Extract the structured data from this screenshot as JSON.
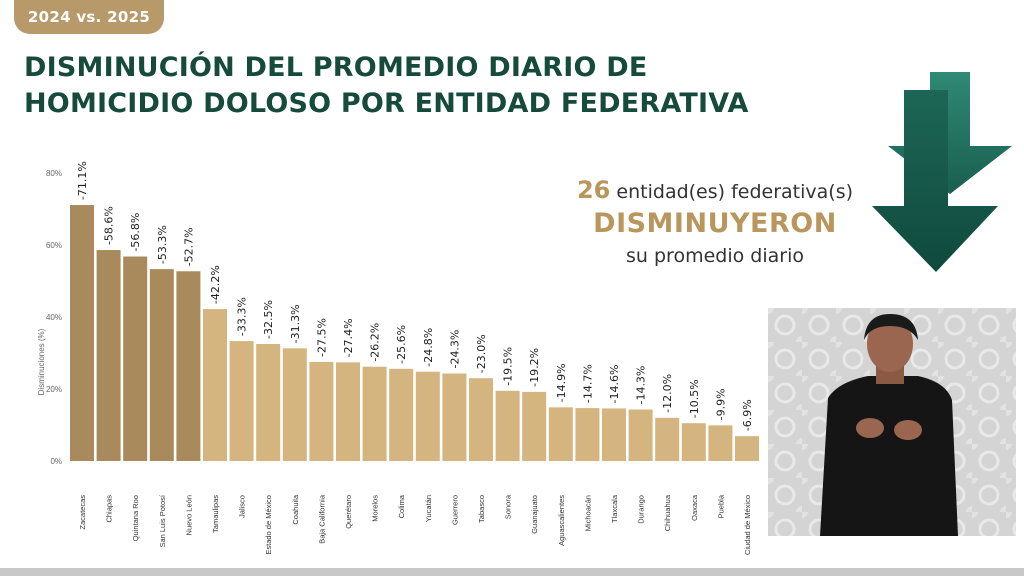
{
  "badge": {
    "text": "2024 vs. 2025"
  },
  "title": {
    "line1": "DISMINUCIÓN DEL PROMEDIO DIARIO DE",
    "line2": "HOMICIDIO DOLOSO POR ENTIDAD FEDERATIVA"
  },
  "summary": {
    "count": "26",
    "line1_rest": "entidad(es) federativa(s)",
    "line2": "DISMINUYERON",
    "line3": "su promedio diario"
  },
  "colors": {
    "title": "#164a3b",
    "badge": "#b8996a",
    "bar_dark": "#a88a5c",
    "bar_light": "#d4b47f",
    "arrow": "#1e6b5b",
    "accent_text": "#b8965c"
  },
  "icons": {
    "arrows": "down-arrows-icon",
    "interpreter": "sign-language-interpreter"
  },
  "chart_data": {
    "type": "bar",
    "title": "",
    "xlabel": "",
    "ylabel": "Disminuciones (%)",
    "ylim": [
      0,
      80
    ],
    "yticks": [
      0,
      20,
      40,
      60,
      80
    ],
    "ytick_labels": [
      "0%",
      "20%",
      "40%",
      "60%",
      "80%"
    ],
    "grid": false,
    "categories": [
      "Zacatecas",
      "Chiapas",
      "Quintana Roo",
      "San Luis Potosí",
      "Nuevo León",
      "Tamaulipas",
      "Jalisco",
      "Estado de México",
      "Coahuila",
      "Baja California",
      "Querétaro",
      "Morelos",
      "Colima",
      "Yucatán",
      "Guerrero",
      "Tabasco",
      "Sonora",
      "Guanajuato",
      "Aguascalientes",
      "Michoacán",
      "Tlaxcala",
      "Durango",
      "Chihuahua",
      "Oaxaca",
      "Puebla",
      "Ciudad de México"
    ],
    "values": [
      71.1,
      58.6,
      56.8,
      53.3,
      52.7,
      42.2,
      33.3,
      32.5,
      31.3,
      27.5,
      27.4,
      26.2,
      25.6,
      24.8,
      24.3,
      23.0,
      19.5,
      19.2,
      14.9,
      14.7,
      14.6,
      14.3,
      12.0,
      10.5,
      9.9,
      6.9
    ],
    "labels": [
      "-71.1%",
      "-58.6%",
      "-56.8%",
      "-53.3%",
      "-52.7%",
      "-42.2%",
      "-33.3%",
      "-32.5%",
      "-31.3%",
      "-27.5%",
      "-27.4%",
      "-26.2%",
      "-25.6%",
      "-24.8%",
      "-24.3%",
      "-23.0%",
      "-19.5%",
      "-19.2%",
      "-14.9%",
      "-14.7%",
      "-14.6%",
      "-14.3%",
      "-12.0%",
      "-10.5%",
      "-9.9%",
      "-6.9%"
    ],
    "highlight_count": 5
  }
}
